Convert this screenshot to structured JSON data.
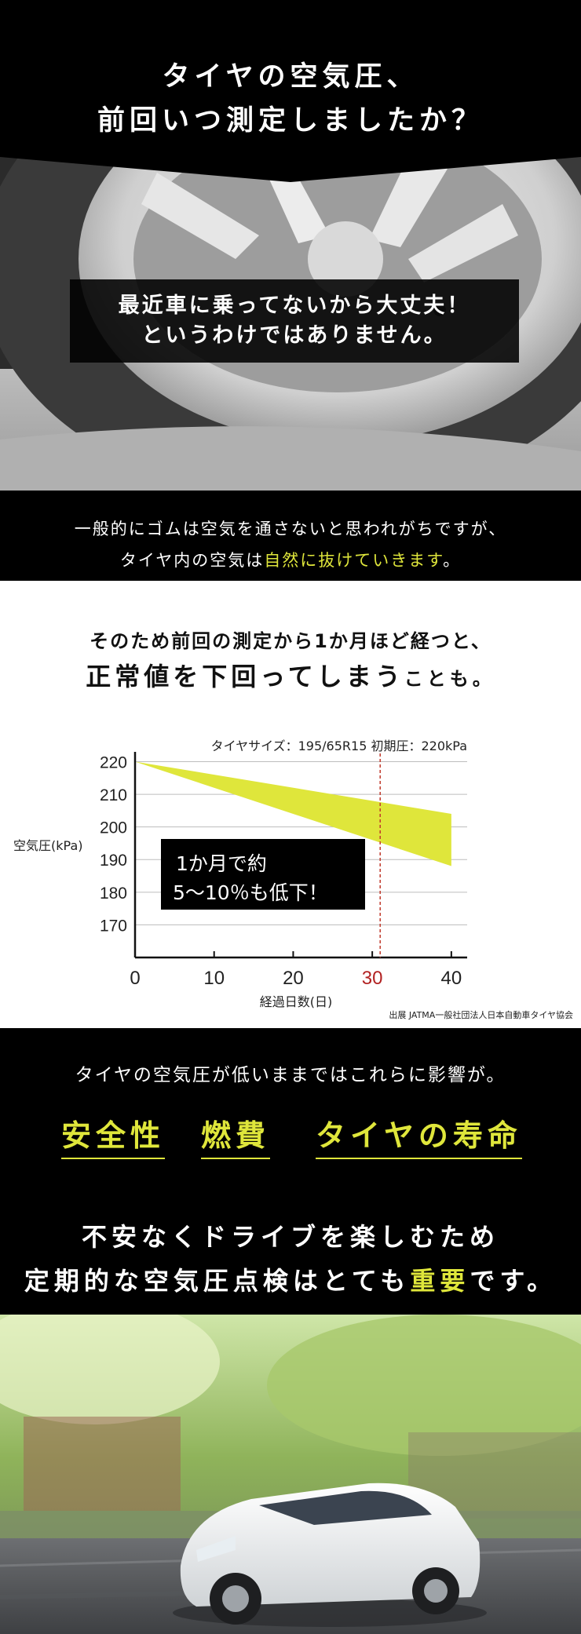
{
  "hero": {
    "title_line1": "タイヤの空気圧、",
    "title_line2": "前回いつ測定しましたか？",
    "box_line1": "最近車に乗ってないから大丈夫！",
    "box_line2": "というわけではありません。"
  },
  "band1": {
    "line1": "一般的にゴムは空気を通さないと思われがちですが、",
    "line2_prefix": "タイヤ内の空気は",
    "line2_highlight": "自然に抜けていきます",
    "line2_suffix": "。"
  },
  "chart_intro": {
    "line1": "そのため前回の測定から1か月ほど経つと、",
    "line2_big": "正常値を下回ってしまう",
    "line2_small": "ことも。"
  },
  "chart_data": {
    "type": "area",
    "title": "タイヤサイズ：195/65R15  初期圧：220kPa",
    "xlabel": "経過日数(日)",
    "ylabel": "空気圧(kPa)",
    "x_ticks": [
      "0",
      "10",
      "20",
      "30",
      "40"
    ],
    "y_ticks": [
      "220",
      "210",
      "200",
      "190",
      "180",
      "170"
    ],
    "xlim": [
      0,
      42
    ],
    "ylim": [
      160,
      223
    ],
    "grid": true,
    "band_upper": [
      {
        "x": 0,
        "y": 220
      },
      {
        "x": 40,
        "y": 204
      }
    ],
    "band_lower": [
      {
        "x": 0,
        "y": 220
      },
      {
        "x": 40,
        "y": 188
      }
    ],
    "marker_x": 31,
    "callout_line1": "1か月で約",
    "callout_line2": "5〜10％も低下！",
    "source": "出展 JATMA一般社団法人日本自動車タイヤ協会",
    "colors": {
      "band": "#dfe63b",
      "marker": "#c0392b",
      "highlight_tick": "#b22222"
    }
  },
  "impact": {
    "lead": "タイヤの空気圧が低いままではこれらに影響が。",
    "keywords": [
      "安全性",
      "燃費",
      "タイヤの寿命"
    ],
    "msg_line1": "不安なくドライブを楽しむため",
    "msg_line2_prefix": "定期的な空気圧点検はとても",
    "msg_line2_highlight": "重要",
    "msg_line2_suffix": "です。"
  },
  "colors": {
    "accent_yellow": "#dfe63b",
    "black": "#000000"
  }
}
